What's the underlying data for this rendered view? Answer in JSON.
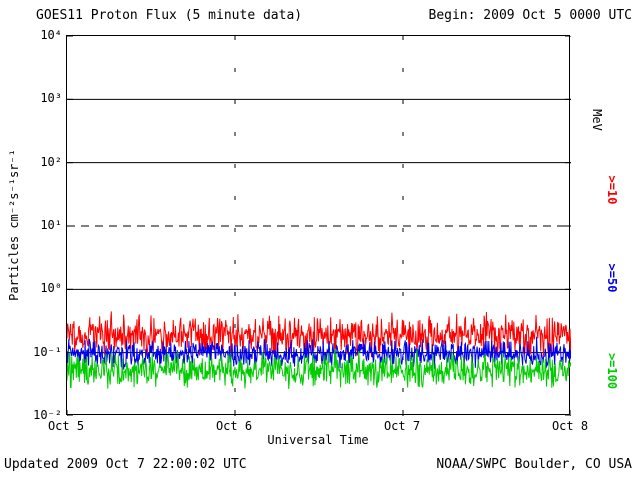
{
  "header": {
    "title": "GOES11 Proton Flux (5 minute data)",
    "begin_label": "Begin: 2009 Oct 5 0000 UTC"
  },
  "footer": {
    "updated": "Updated 2009 Oct 7 22:00:02 UTC",
    "credit": "NOAA/SWPC Boulder, CO USA"
  },
  "chart_data": {
    "type": "line",
    "title": "GOES11 Proton Flux (5 minute data)",
    "xlabel": "Universal Time",
    "ylabel": "Particles cm⁻²s⁻¹sr⁻¹",
    "unit_label": "MeV",
    "x_axis": {
      "tick_labels": [
        "Oct 5",
        "Oct 6",
        "Oct 7",
        "Oct 8"
      ],
      "span_days": 3,
      "points_per_day": 288
    },
    "y_axis": {
      "scale": "log10",
      "log_min": -2,
      "log_max": 4,
      "tick_labels": [
        "10⁴",
        "10³",
        "10²",
        "10¹",
        "10⁰",
        "10⁻¹",
        "10⁻²"
      ]
    },
    "gridlines": {
      "horizontal_solid_log": [
        3,
        2,
        0,
        -1
      ],
      "horizontal_dashed_log": [
        1
      ],
      "vertical_dashed_days": [
        1,
        2
      ]
    },
    "series": [
      {
        "name": ">=10",
        "color": "#ff0000",
        "baseline_log10": -0.72,
        "noise_log10": 0.22,
        "approx_flux_mean": 0.19
      },
      {
        "name": ">=50",
        "color": "#0000ee",
        "baseline_log10": -1.02,
        "noise_log10": 0.15,
        "approx_flux_mean": 0.095
      },
      {
        "name": ">=100",
        "color": "#00cc00",
        "baseline_log10": -1.28,
        "noise_log10": 0.18,
        "approx_flux_mean": 0.052
      }
    ]
  }
}
